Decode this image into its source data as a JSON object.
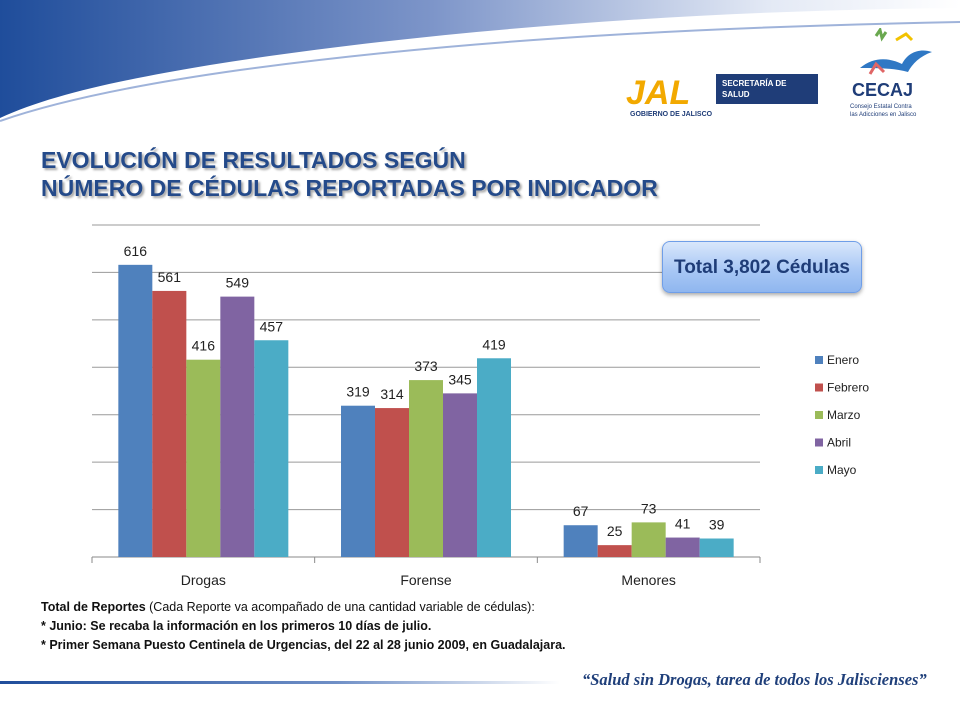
{
  "header": {
    "jal_logo_text": "JAL",
    "jal_sub_text": "GOBIERNO DE JALISCO",
    "secretaria_text_1": "SECRETARÍA DE",
    "secretaria_text_2": "SALUD",
    "cecaj_text": "CECAJ",
    "cecaj_sub_1": "Consejo Estatal Contra",
    "cecaj_sub_2": "las Adicciones en Jalisco"
  },
  "title": {
    "line1": "EVOLUCIÓN DE RESULTADOS SEGÚN",
    "line2": "NÚMERO DE CÉDULAS REPORTADAS POR INDICADOR"
  },
  "badge": {
    "text": "Total 3,802 Cédulas"
  },
  "chart_data": {
    "type": "bar",
    "categories": [
      "Drogas",
      "Forense",
      "Menores"
    ],
    "series": [
      {
        "name": "Enero",
        "color": "#4f81bd",
        "values": [
          616,
          319,
          67
        ]
      },
      {
        "name": "Febrero",
        "color": "#c0504d",
        "values": [
          561,
          314,
          25
        ]
      },
      {
        "name": "Marzo",
        "color": "#9bbb59",
        "values": [
          416,
          373,
          73
        ]
      },
      {
        "name": "Abril",
        "color": "#8064a2",
        "values": [
          549,
          345,
          41
        ]
      },
      {
        "name": "Mayo",
        "color": "#4bacc6",
        "values": [
          457,
          419,
          39
        ]
      }
    ],
    "ylim": [
      0,
      700
    ],
    "grid": true,
    "legend": "right"
  },
  "notes": {
    "line1_bold": "Total de Reportes",
    "line1_rest": " (Cada Reporte va acompañado de una cantidad variable de cédulas):",
    "line2": "* Junio: Se recaba la información  en los primeros 10 días de julio.",
    "line3": "* Primer Semana Puesto Centinela de Urgencias, del 22 al 28 junio 2009,  en Guadalajara."
  },
  "footer": {
    "quote": "“Salud sin Drogas, tarea de todos los Jaliscienses”"
  }
}
